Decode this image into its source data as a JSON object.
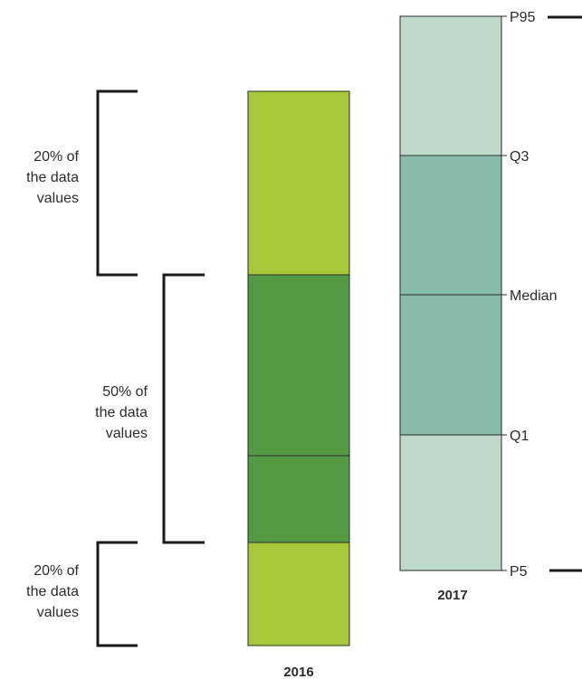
{
  "brackets": {
    "top": {
      "line1": "20% of",
      "line2": "the data",
      "line3": "values"
    },
    "middle": {
      "line1": "50% of",
      "line2": "the data",
      "line3": "values"
    },
    "bottom": {
      "line1": "20% of",
      "line2": "the data",
      "line3": "values"
    }
  },
  "boxes": [
    {
      "year": "2016",
      "colors": {
        "outer": "#a6c83a",
        "inner": "#549a45"
      }
    },
    {
      "year": "2017",
      "colors": {
        "outer": "#c0d9cb",
        "inner": "#87bcab"
      }
    }
  ],
  "markers": {
    "p95": "P95",
    "q3": "Q3",
    "median": "Median",
    "q1": "Q1",
    "p5": "P5"
  }
}
